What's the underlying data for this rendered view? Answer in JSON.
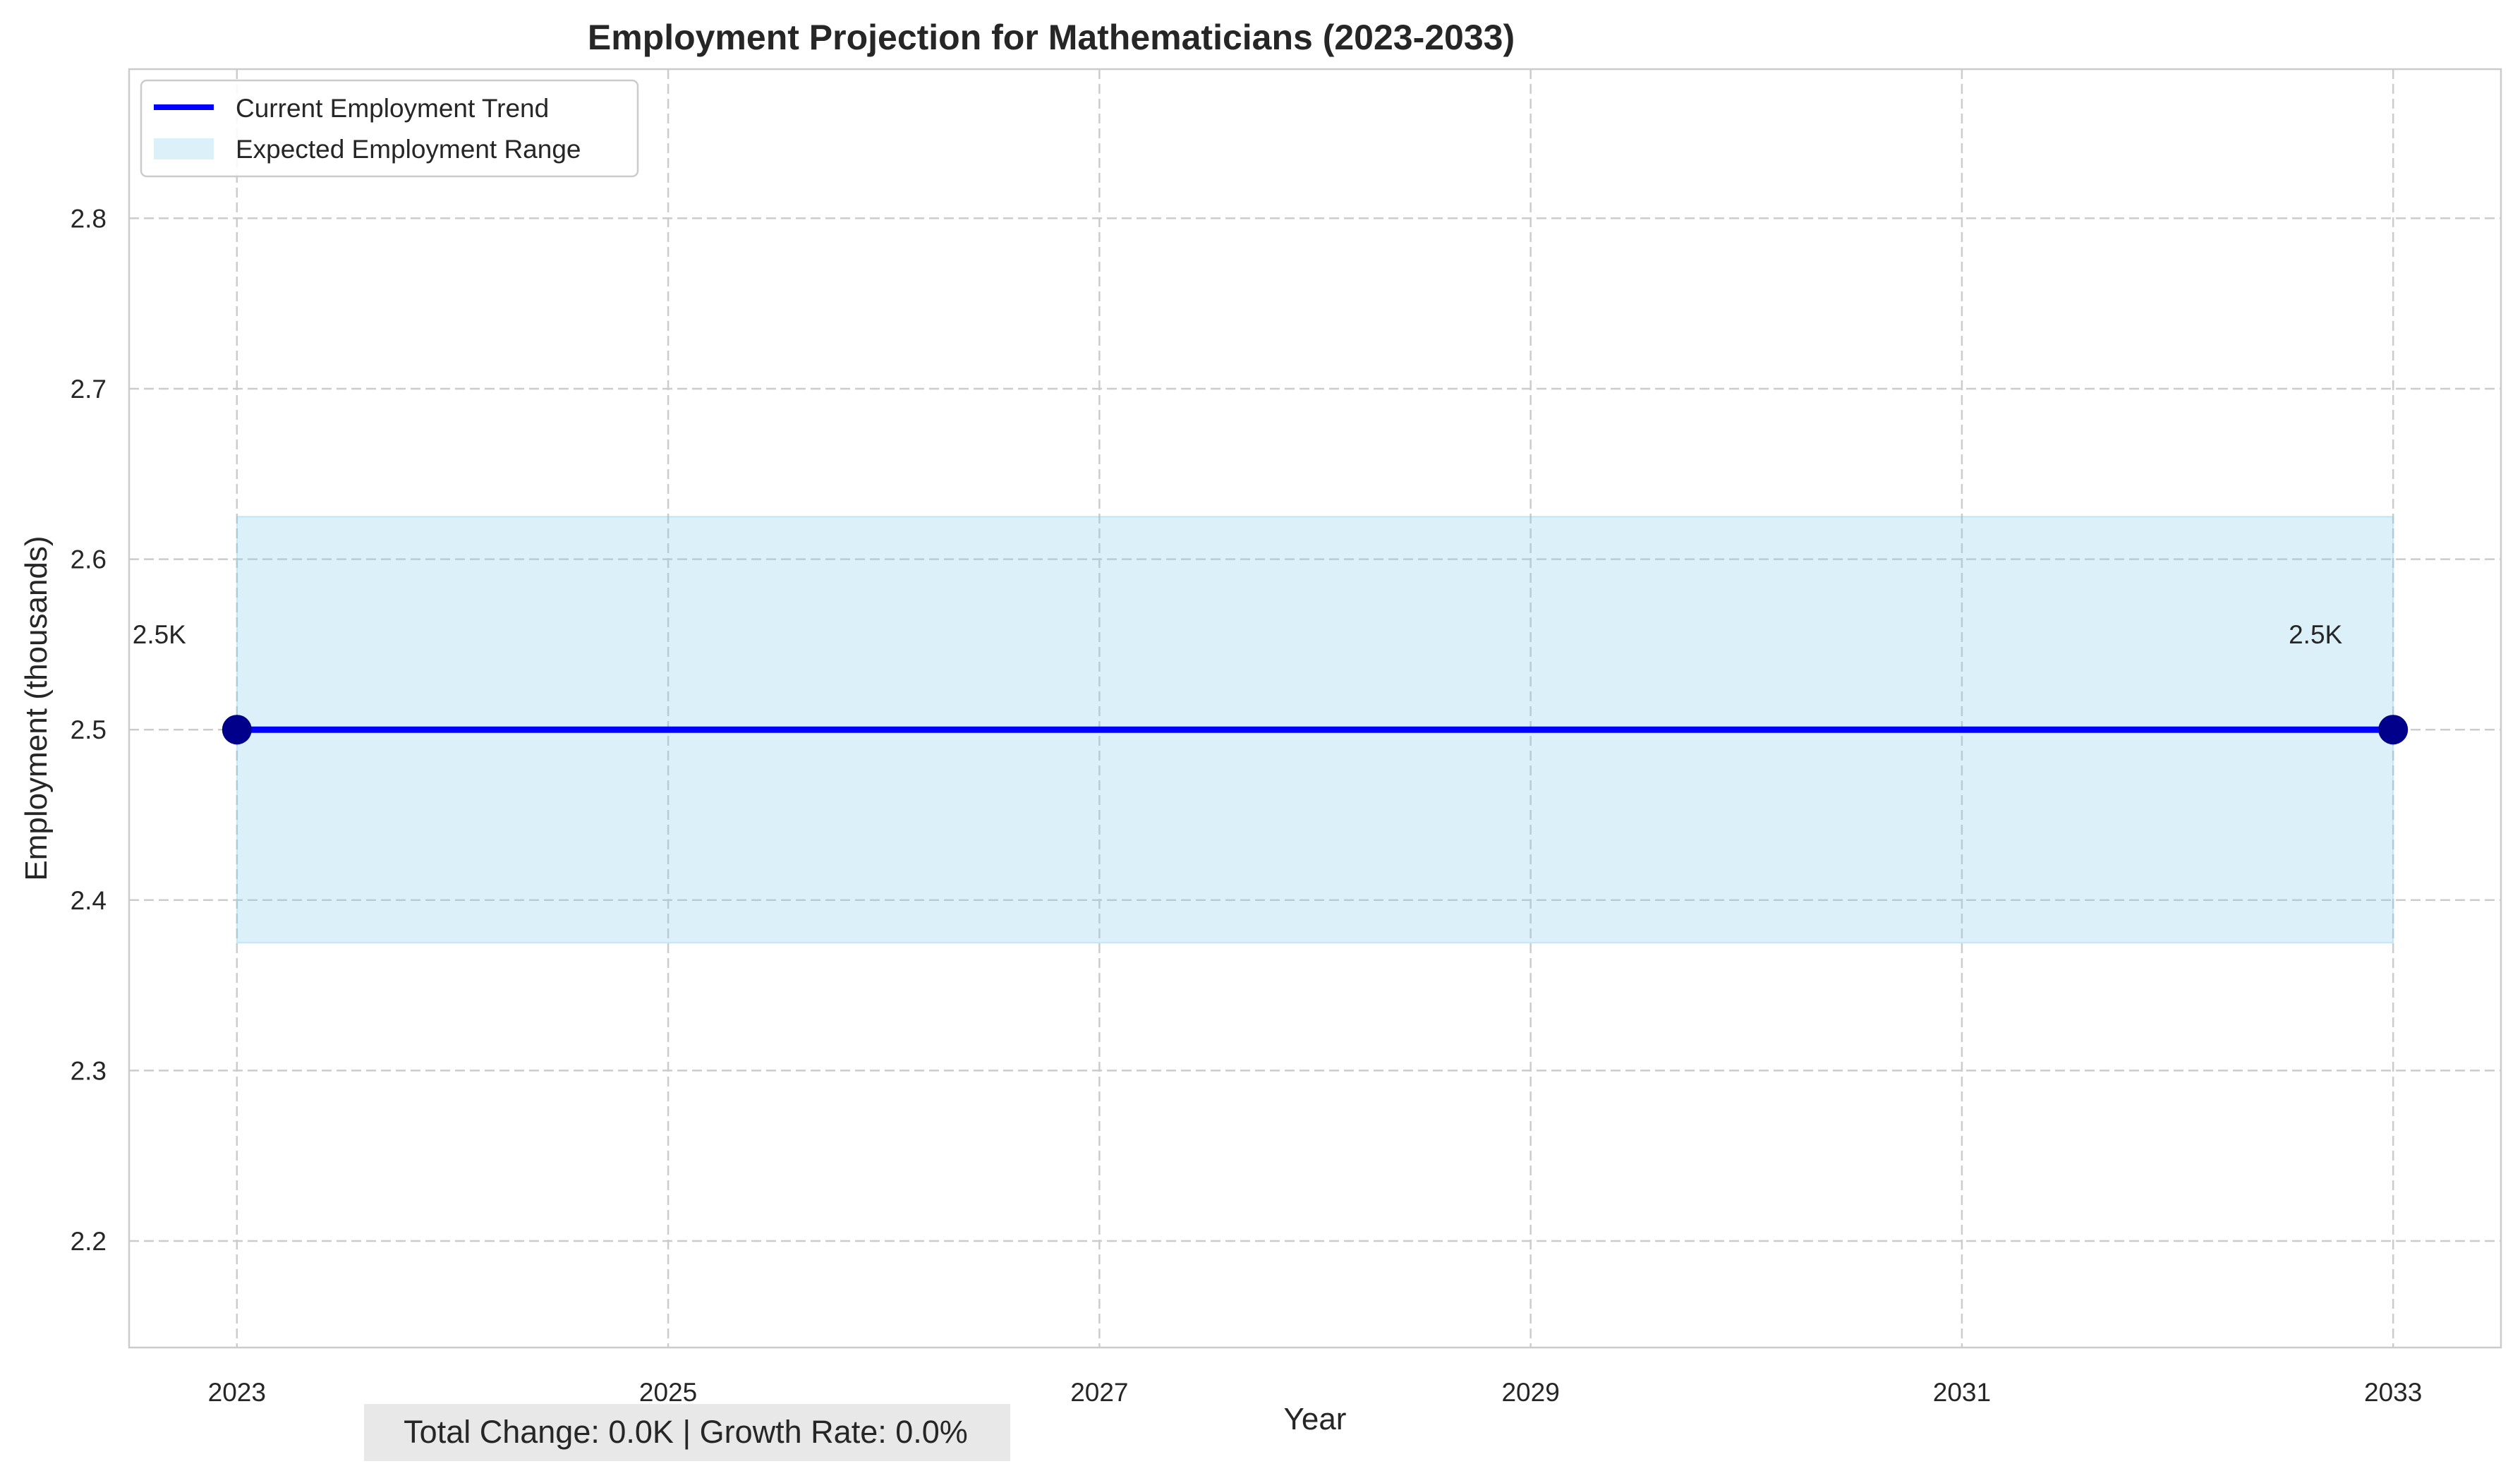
{
  "chart_data": {
    "type": "line",
    "title": "Employment Projection for Mathematicians (2023-2033)",
    "xlabel": "Year",
    "ylabel": "Employment (thousands)",
    "xlim": [
      2022.5,
      2033.5
    ],
    "ylim": [
      2.1375,
      2.8875
    ],
    "x_ticks": [
      2023,
      2025,
      2027,
      2029,
      2031,
      2033
    ],
    "y_ticks": [
      2.2,
      2.3,
      2.4,
      2.5,
      2.6,
      2.7,
      2.8
    ],
    "x_tick_labels": [
      "2023",
      "2025",
      "2027",
      "2029",
      "2031",
      "2033"
    ],
    "y_tick_labels": [
      "2.2",
      "2.3",
      "2.4",
      "2.5",
      "2.6",
      "2.7",
      "2.8"
    ],
    "grid": true,
    "legend_position": "top-left",
    "series": [
      {
        "name": "Current Employment Trend",
        "x": [
          2023,
          2033
        ],
        "y": [
          2.5,
          2.5
        ],
        "color": "#0000ff",
        "marker_color": "#00008b"
      }
    ],
    "band": {
      "name": "Expected Employment Range",
      "x": [
        2023,
        2033
      ],
      "lower": [
        2.375,
        2.375
      ],
      "upper": [
        2.625,
        2.625
      ],
      "color": "#87ceeb"
    },
    "point_labels": [
      {
        "x": 2023,
        "y": 2.5,
        "text": "2.5K"
      },
      {
        "x": 2033,
        "y": 2.5,
        "text": "2.5K"
      }
    ],
    "summary": "Total Change: 0.0K | Growth Rate: 0.0%"
  }
}
